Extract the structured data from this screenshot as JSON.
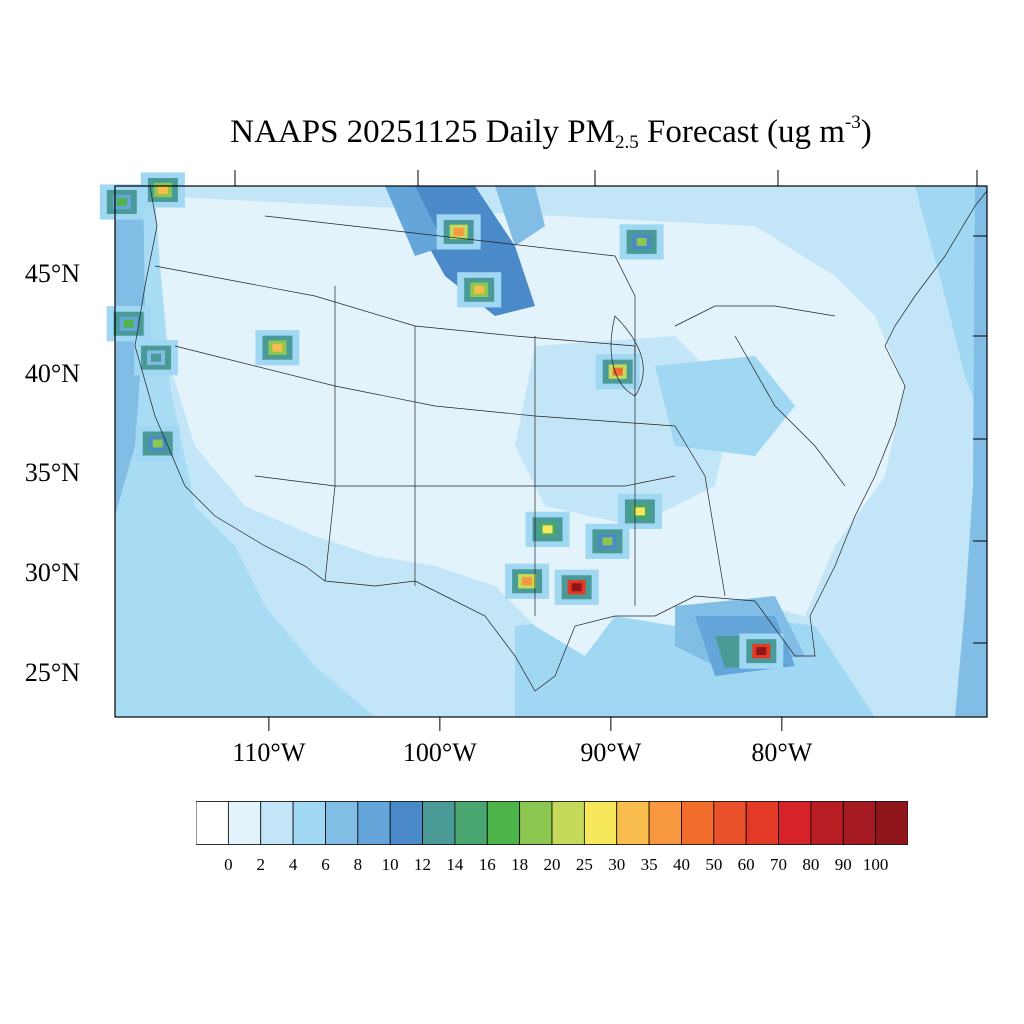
{
  "title": {
    "prefix": "NAAPS 20251125 Daily PM",
    "subscript": "2.5",
    "middle": " Forecast (ug m",
    "superscript": "-3",
    "suffix": ")"
  },
  "map": {
    "projection": "lat-lon",
    "lat_range": [
      22.8,
      49.4
    ],
    "lon_range": [
      -119,
      -68
    ],
    "lat_labels": [
      "45°N",
      "40°N",
      "35°N",
      "30°N",
      "25°N"
    ],
    "lon_labels": [
      "110°W",
      "100°W",
      "90°W",
      "80°W"
    ]
  },
  "colorbar": {
    "labels": [
      "0",
      "2",
      "4",
      "6",
      "8",
      "10",
      "12",
      "14",
      "16",
      "18",
      "20",
      "25",
      "30",
      "35",
      "40",
      "50",
      "60",
      "70",
      "80",
      "90",
      "100"
    ],
    "colors": [
      "#ffffff",
      "#e2f3fb",
      "#c2e6f7",
      "#a0d7f3",
      "#82bde6",
      "#65a6da",
      "#4a8ac8",
      "#4a9a98",
      "#49a670",
      "#4db44a",
      "#8cc751",
      "#c5d95b",
      "#f7e75b",
      "#f9bd4d",
      "#f79840",
      "#f26d2c",
      "#e9512b",
      "#e33a27",
      "#d52329",
      "#b91d24",
      "#a41a20",
      "#8e1519"
    ]
  },
  "hotspots": [
    {
      "region": "Pacific Northwest coast",
      "level": 16
    },
    {
      "region": "Northern Idaho",
      "level": 30
    },
    {
      "region": "North Dakota",
      "level": 35
    },
    {
      "region": "Eastern South Dakota",
      "level": 30
    },
    {
      "region": "Upper Peninsula Michigan",
      "level": 18
    },
    {
      "region": "Southern Oregon coast",
      "level": 16
    },
    {
      "region": "Northern California",
      "level": 12
    },
    {
      "region": "Southwest Wyoming",
      "level": 30
    },
    {
      "region": "Northern Illinois",
      "level": 40
    },
    {
      "region": "Central California",
      "level": 18
    },
    {
      "region": "Northern Mississippi",
      "level": 25
    },
    {
      "region": "Southern Arkansas",
      "level": 25
    },
    {
      "region": "Central Louisiana",
      "level": 18
    },
    {
      "region": "Southeast Texas",
      "level": 35
    },
    {
      "region": "South Louisiana",
      "level": 100
    },
    {
      "region": "Southwest Florida",
      "level": 100
    }
  ]
}
